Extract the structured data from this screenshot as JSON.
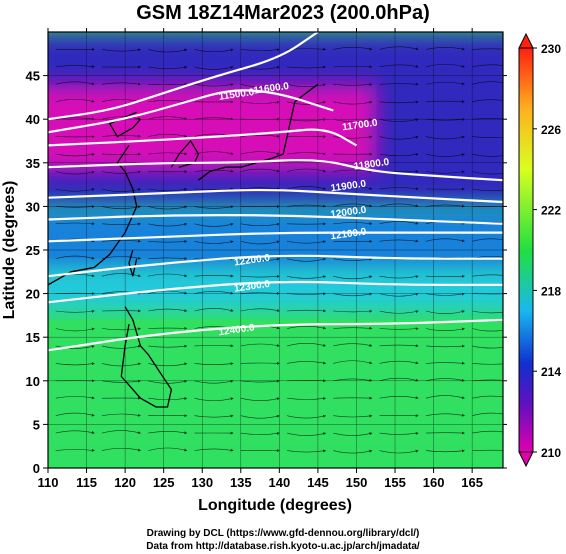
{
  "title": "GSM 18Z14Mar2023 (200.0hPa)",
  "credits": {
    "line1": "Drawing by DCL (https://www.gfd-dennou.org/library/dcl/)",
    "line2": "Data from http://database.rish.kyoto-u.ac.jp/arch/jmadata/"
  },
  "axes": {
    "xlabel": "Longitude (degrees)",
    "ylabel": "Latitude  (degrees)",
    "xlim": [
      110,
      169
    ],
    "ylim": [
      0,
      50
    ],
    "xticks": [
      110,
      115,
      120,
      125,
      130,
      135,
      140,
      145,
      150,
      155,
      160,
      165
    ],
    "yticks": [
      0,
      5,
      10,
      15,
      20,
      25,
      30,
      35,
      40,
      45
    ]
  },
  "colorbar": {
    "range": [
      210,
      230
    ],
    "ticks": [
      210,
      214,
      218,
      222,
      226,
      230
    ],
    "colors": [
      "#e000b0",
      "#2010c0",
      "#18b8f0",
      "#20e040",
      "#d8ff20",
      "#ffb020",
      "#ff2010"
    ]
  },
  "contours": [
    {
      "label": "11500.0",
      "points": [
        [
          110,
          40
        ],
        [
          118,
          41
        ],
        [
          125,
          43
        ],
        [
          132,
          45
        ],
        [
          140,
          47
        ],
        [
          145,
          50
        ]
      ]
    },
    {
      "label": "11600.0",
      "points": [
        [
          110,
          38.5
        ],
        [
          120,
          40
        ],
        [
          128,
          42
        ],
        [
          134,
          43.5
        ],
        [
          140,
          43
        ],
        [
          147,
          41
        ]
      ]
    },
    {
      "label": "11700.0",
      "points": [
        [
          110,
          37
        ],
        [
          122,
          37.5
        ],
        [
          132,
          38
        ],
        [
          140,
          38.5
        ],
        [
          146,
          39
        ],
        [
          150,
          37
        ]
      ]
    },
    {
      "label": "11800.0",
      "points": [
        [
          110,
          34.5
        ],
        [
          125,
          35
        ],
        [
          135,
          35
        ],
        [
          145,
          35.5
        ],
        [
          152,
          34
        ],
        [
          160,
          33.5
        ],
        [
          169,
          33
        ]
      ]
    },
    {
      "label": "11900.0",
      "points": [
        [
          110,
          31
        ],
        [
          125,
          31.5
        ],
        [
          138,
          32
        ],
        [
          148,
          31.5
        ],
        [
          158,
          31
        ],
        [
          169,
          30.5
        ]
      ]
    },
    {
      "label": "12000.0",
      "points": [
        [
          110,
          28.5
        ],
        [
          125,
          29
        ],
        [
          140,
          29
        ],
        [
          155,
          28.5
        ],
        [
          169,
          28
        ]
      ]
    },
    {
      "label": "12100.0",
      "points": [
        [
          110,
          26
        ],
        [
          125,
          26.5
        ],
        [
          140,
          27
        ],
        [
          155,
          27
        ],
        [
          169,
          27
        ]
      ]
    },
    {
      "label": "12200.0",
      "points": [
        [
          110,
          22
        ],
        [
          125,
          23.5
        ],
        [
          140,
          24.5
        ],
        [
          155,
          24
        ],
        [
          169,
          24
        ]
      ]
    },
    {
      "label": "12300.0",
      "points": [
        [
          110,
          19
        ],
        [
          125,
          20.5
        ],
        [
          140,
          21.5
        ],
        [
          155,
          21
        ],
        [
          169,
          21
        ]
      ]
    },
    {
      "label": "12400.0",
      "points": [
        [
          110,
          13.5
        ],
        [
          125,
          15.5
        ],
        [
          140,
          16.5
        ],
        [
          155,
          16.5
        ],
        [
          169,
          17
        ]
      ]
    }
  ],
  "contour_labels": [
    {
      "text": "11500.0",
      "lon": 134.5,
      "lat": 42.5
    },
    {
      "text": "11600.0",
      "lon": 139,
      "lat": 43.2
    },
    {
      "text": "11700.0",
      "lon": 150.5,
      "lat": 39
    },
    {
      "text": "11800.0",
      "lon": 152,
      "lat": 34.5
    },
    {
      "text": "11900.0",
      "lon": 149,
      "lat": 32
    },
    {
      "text": "12000.0",
      "lon": 149,
      "lat": 29
    },
    {
      "text": "12100.0",
      "lon": 149,
      "lat": 26.5
    },
    {
      "text": "12200.0",
      "lon": 136.5,
      "lat": 23.5
    },
    {
      "text": "12300.0",
      "lon": 136.5,
      "lat": 20.5
    },
    {
      "text": "12400.0",
      "lon": 134.5,
      "lat": 15.5
    }
  ],
  "temperature_regions": [
    {
      "name": "magenta-jet-band",
      "value": 210,
      "lon": [
        110,
        150
      ],
      "lat": [
        34,
        44
      ]
    },
    {
      "name": "blue-north",
      "value": 213,
      "lon": [
        110,
        169
      ],
      "lat": [
        30,
        50
      ]
    },
    {
      "name": "blue-subtropics",
      "value": 215,
      "lon": [
        110,
        169
      ],
      "lat": [
        22,
        30
      ]
    },
    {
      "name": "cyan-band",
      "value": 217,
      "lon": [
        110,
        169
      ],
      "lat": [
        18,
        23
      ]
    },
    {
      "name": "green-tropics",
      "value": 221,
      "lon": [
        110,
        169
      ],
      "lat": [
        0,
        18
      ]
    }
  ]
}
